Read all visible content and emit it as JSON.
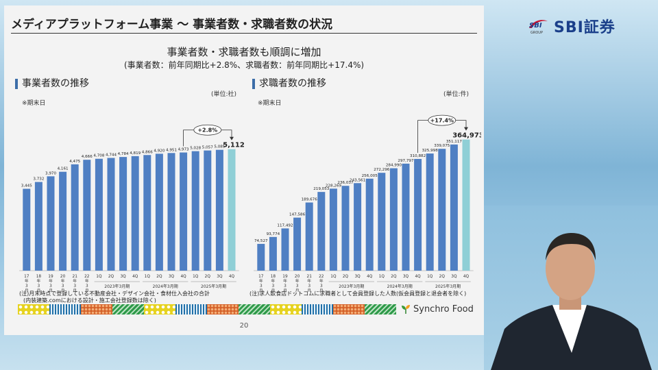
{
  "slide": {
    "title": "メディアプラットフォーム事業 ～ 事業者数・求職者数の状況",
    "headline": "事業者数・求職者数も順調に増加",
    "subheadline": "(事業者数：前年同期比+2.8%、求職者数：前年同期比+17.4%)",
    "page_number": "20",
    "brand": "Synchro Food"
  },
  "logo": {
    "mark": "SBI",
    "mark_sub": "GROUP",
    "name": "SBI証券"
  },
  "colors": {
    "bar": "#4f7fc3",
    "bar_highlight": "#8fcfd6",
    "title_accent": "#3c6da8"
  },
  "chart_data": [
    {
      "type": "bar",
      "title": "事業者数の推移",
      "unit": "(単位:社)",
      "note": "※期末日",
      "categories": [
        "17年3月期",
        "18年3月期",
        "19年3月期",
        "20年3月期",
        "21年3月期",
        "22年3月期",
        "1Q",
        "2Q",
        "3Q",
        "4Q",
        "1Q",
        "2Q",
        "3Q",
        "4Q",
        "1Q",
        "2Q",
        "3Q",
        "4Q"
      ],
      "x_tick_lines": [
        [
          "17",
          "年",
          "3",
          "月",
          "期"
        ],
        [
          "18",
          "年",
          "3",
          "月",
          "期"
        ],
        [
          "19",
          "年",
          "3",
          "月",
          "期"
        ],
        [
          "20",
          "年",
          "3",
          "月",
          "期"
        ],
        [
          "21",
          "年",
          "3",
          "月",
          "期"
        ],
        [
          "22",
          "年",
          "3",
          "月",
          "期"
        ],
        [
          "1Q"
        ],
        [
          "2Q"
        ],
        [
          "3Q"
        ],
        [
          "4Q"
        ],
        [
          "1Q"
        ],
        [
          "2Q"
        ],
        [
          "3Q"
        ],
        [
          "4Q"
        ],
        [
          "1Q"
        ],
        [
          "2Q"
        ],
        [
          "3Q"
        ],
        [
          "4Q"
        ]
      ],
      "groups": [
        {
          "label": "2023年3月期",
          "from": 6,
          "to": 9
        },
        {
          "label": "2024年3月期",
          "from": 10,
          "to": 13
        },
        {
          "label": "2025年3月期",
          "from": 14,
          "to": 17
        }
      ],
      "values": [
        3445,
        3732,
        3970,
        4161,
        4475,
        4666,
        4708,
        4744,
        4784,
        4819,
        4866,
        4920,
        4951,
        4973,
        5028,
        5057,
        5085,
        5112
      ],
      "data_labels": [
        "3,445",
        "3,732",
        "3,970",
        "4,161",
        "4,475",
        "4,666",
        "4,708",
        "4,744",
        "4,784",
        "4,819",
        "4,866",
        "4,920",
        "4,951",
        "4,973",
        "5,028",
        "5,057",
        "5,085",
        "5,112"
      ],
      "highlight_index": 17,
      "growth": {
        "label": "+2.8%",
        "from": 13,
        "to": 17
      },
      "ylim": [
        0,
        6200
      ],
      "footnote": [
        "(注)月末時点で登録している不動産会社・デザイン会社・食材仕入会社の合計",
        "(内装建築.comにおける設計・施工会社登録数は除く)"
      ]
    },
    {
      "type": "bar",
      "title": "求職者数の推移",
      "unit": "(単位:件)",
      "note": "※期末日",
      "categories": [
        "17年3月期",
        "18年3月期",
        "19年3月期",
        "20年3月期",
        "21年3月期",
        "22年3月期",
        "1Q",
        "2Q",
        "3Q",
        "4Q",
        "1Q",
        "2Q",
        "3Q",
        "4Q",
        "1Q",
        "2Q",
        "3Q",
        "4Q"
      ],
      "x_tick_lines": [
        [
          "17",
          "年",
          "3",
          "月",
          "期"
        ],
        [
          "18",
          "年",
          "3",
          "月",
          "期"
        ],
        [
          "19",
          "年",
          "3",
          "月",
          "期"
        ],
        [
          "20",
          "年",
          "3",
          "月",
          "期"
        ],
        [
          "21",
          "年",
          "3",
          "月",
          "期"
        ],
        [
          "22",
          "年",
          "3",
          "月",
          "期"
        ],
        [
          "1Q"
        ],
        [
          "2Q"
        ],
        [
          "3Q"
        ],
        [
          "4Q"
        ],
        [
          "1Q"
        ],
        [
          "2Q"
        ],
        [
          "3Q"
        ],
        [
          "4Q"
        ],
        [
          "1Q"
        ],
        [
          "2Q"
        ],
        [
          "3Q"
        ],
        [
          "4Q"
        ]
      ],
      "groups": [
        {
          "label": "2023年3月期",
          "from": 6,
          "to": 9
        },
        {
          "label": "2024年3月期",
          "from": 10,
          "to": 13
        },
        {
          "label": "2025年3月期",
          "from": 14,
          "to": 17
        }
      ],
      "values": [
        74527,
        93774,
        117492,
        147586,
        189676,
        219053,
        228269,
        236037,
        243561,
        256005,
        272296,
        284990,
        297797,
        310882,
        325998,
        339075,
        351117,
        364973
      ],
      "data_labels": [
        "74,527",
        "93,774",
        "117,492",
        "147,586",
        "189,676",
        "219,053",
        "228,269",
        "236,037",
        "243,561",
        "256,005",
        "272,296",
        "284,990",
        "297,797",
        "310,882",
        "325,998",
        "339,075",
        "351,117",
        "364,973"
      ],
      "highlight_index": 17,
      "growth": {
        "label": "+17.4%",
        "from": 13,
        "to": 17
      },
      "ylim": [
        0,
        410000
      ],
      "footnote": [
        "(注)求人飲食店ドットコムに求職者として会員登録した人数(仮会員登録と退会者を除く)"
      ]
    }
  ]
}
